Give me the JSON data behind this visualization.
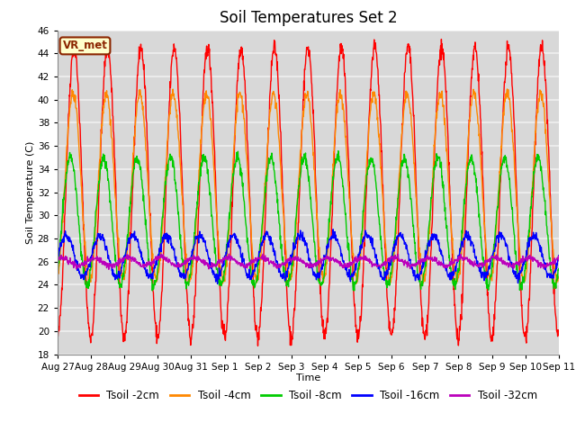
{
  "title": "Soil Temperatures Set 2",
  "xlabel": "Time",
  "ylabel": "Soil Temperature (C)",
  "ylim": [
    18,
    46
  ],
  "yticks": [
    18,
    20,
    22,
    24,
    26,
    28,
    30,
    32,
    34,
    36,
    38,
    40,
    42,
    44,
    46
  ],
  "fig_bg_color": "#ffffff",
  "plot_bg_color": "#d8d8d8",
  "grid_color": "#f0f0f0",
  "series": [
    {
      "label": "Tsoil -2cm",
      "color": "#ff0000",
      "lw": 1.0
    },
    {
      "label": "Tsoil -4cm",
      "color": "#ff8800",
      "lw": 1.0
    },
    {
      "label": "Tsoil -8cm",
      "color": "#00cc00",
      "lw": 1.0
    },
    {
      "label": "Tsoil -16cm",
      "color": "#0000ff",
      "lw": 1.0
    },
    {
      "label": "Tsoil -32cm",
      "color": "#bb00bb",
      "lw": 1.0
    }
  ],
  "annotation_text": "VR_met",
  "n_days": 15,
  "pts_per_day": 96,
  "day_labels": [
    "Aug 27",
    "Aug 28",
    "Aug 29",
    "Aug 30",
    "Aug 31",
    "Sep 1",
    "Sep 2",
    "Sep 3",
    "Sep 4",
    "Sep 5",
    "Sep 6",
    "Sep 7",
    "Sep 8",
    "Sep 9",
    "Sep 10",
    "Sep 11"
  ],
  "title_fontsize": 12,
  "label_fontsize": 8,
  "tick_fontsize": 7.5,
  "legend_fontsize": 8.5
}
